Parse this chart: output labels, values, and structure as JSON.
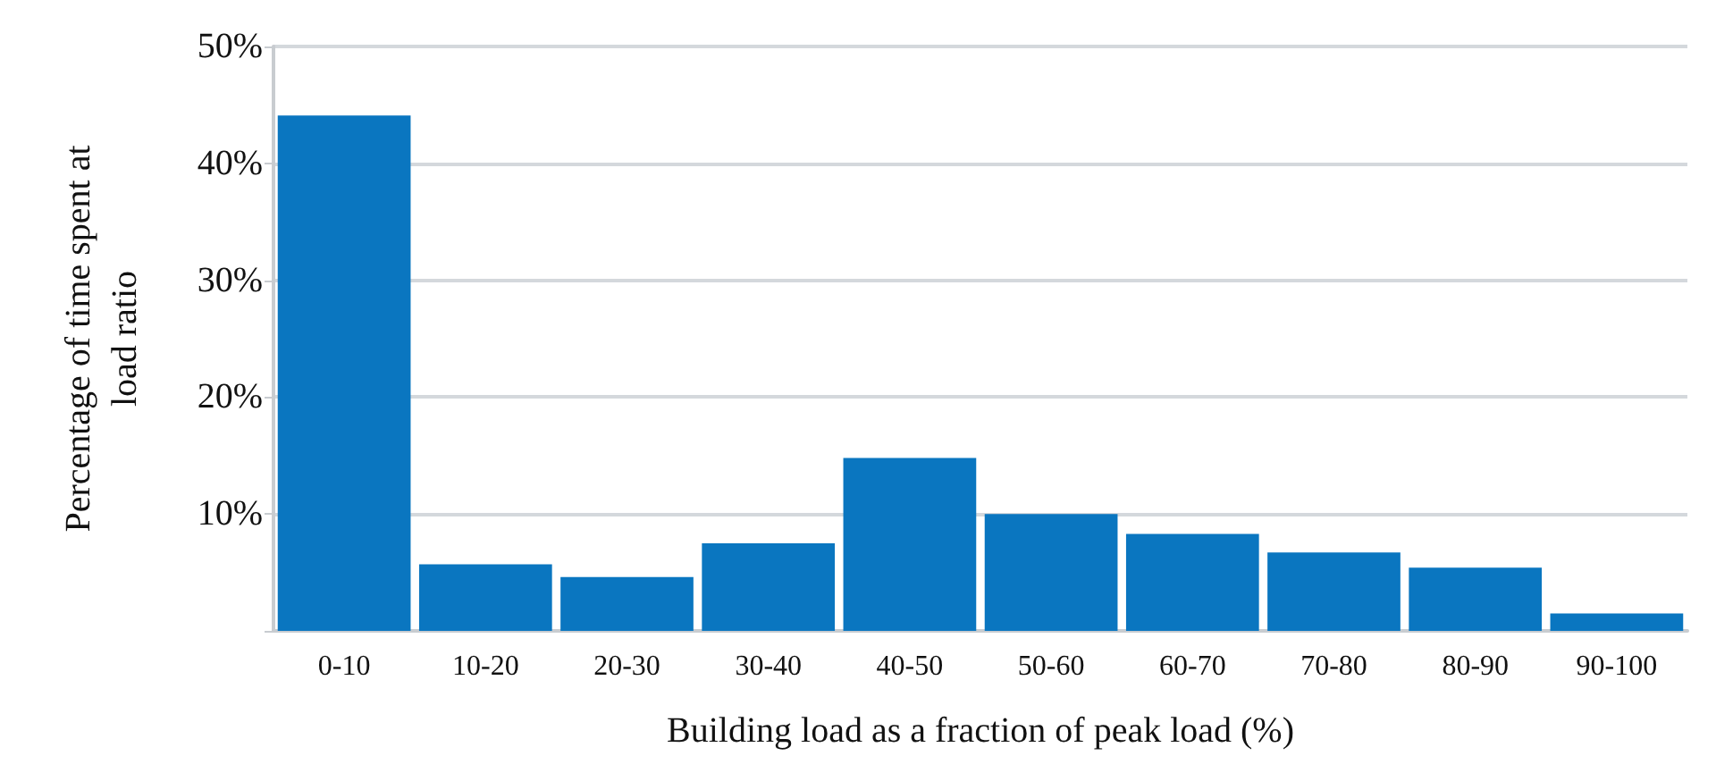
{
  "chart_data": {
    "type": "bar",
    "xlabel": "Building load as a fraction of peak load (%)",
    "ylabel": "Percentage of time spent at\nload ratio",
    "categories": [
      "0-10",
      "10-20",
      "20-30",
      "30-40",
      "40-50",
      "50-60",
      "60-70",
      "70-80",
      "80-90",
      "90-100"
    ],
    "values": [
      44.1,
      5.7,
      4.6,
      7.5,
      14.8,
      10.0,
      8.3,
      6.7,
      5.4,
      1.5
    ],
    "color": "#0a76c0",
    "ylim": [
      0,
      50
    ],
    "yticks": [
      {
        "value": 0,
        "label": null
      },
      {
        "value": 10,
        "label": "10%"
      },
      {
        "value": 20,
        "label": "20%"
      },
      {
        "value": 30,
        "label": "30%"
      },
      {
        "value": 40,
        "label": "40%"
      },
      {
        "value": 50,
        "label": "50%"
      }
    ],
    "grid": "y"
  }
}
